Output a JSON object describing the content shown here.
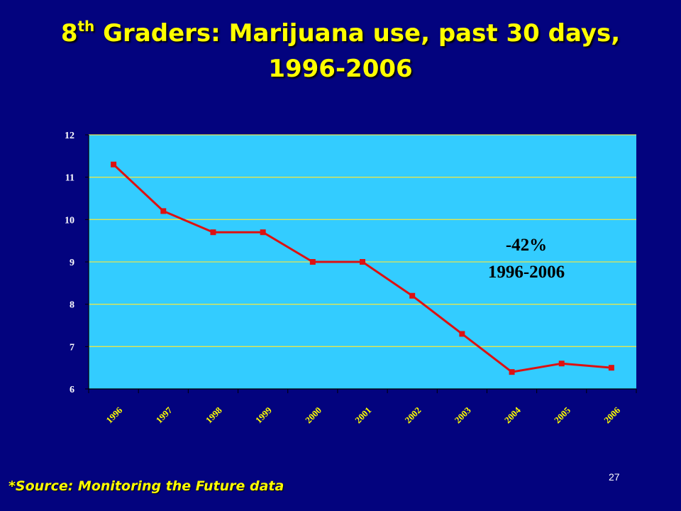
{
  "slide": {
    "title_pre": "8",
    "title_sup": "th",
    "title_rest": " Graders:  Marijuana use, past 30 days,",
    "title_line2": "1996-2006",
    "source": "*Source: Monitoring the Future data",
    "slide_number": "27"
  },
  "chart_data": {
    "type": "line",
    "categories": [
      "1996",
      "1997",
      "1998",
      "1999",
      "2000",
      "2001",
      "2002",
      "2003",
      "2004",
      "2005",
      "2006"
    ],
    "series": [
      {
        "values": [
          11.3,
          10.2,
          9.7,
          9.7,
          9.0,
          9.0,
          8.2,
          7.3,
          6.4,
          6.6,
          6.5
        ]
      }
    ],
    "ylim": [
      6,
      12
    ],
    "yticks": [
      "6",
      "7",
      "8",
      "9",
      "10",
      "11",
      "12"
    ],
    "grid": true,
    "annotation": {
      "line1": "-42%",
      "line2": "1996-2006"
    },
    "colors": {
      "plot_background": "#33ccff",
      "gridline": "#e6e64d",
      "line": "#dd1111",
      "marker": "#dd1111",
      "tick_label_x": "#ffff00",
      "tick_label_y": "#ffffff",
      "annotation": "#000000"
    }
  }
}
